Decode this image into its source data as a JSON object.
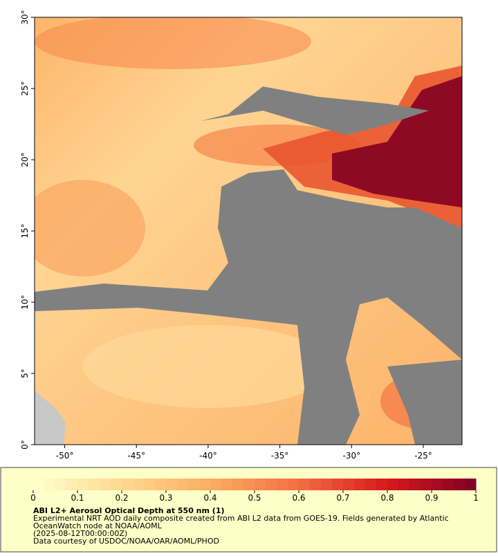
{
  "map": {
    "lonlim": [
      -52.1,
      -22.3
    ],
    "latlim": [
      0,
      30
    ],
    "lon_ticks": [
      {
        "value": -50,
        "label": "-50°"
      },
      {
        "value": -45,
        "label": "-45°"
      },
      {
        "value": -40,
        "label": "-40°"
      },
      {
        "value": -35,
        "label": "-35°"
      },
      {
        "value": -30,
        "label": "-30°"
      },
      {
        "value": -25,
        "label": "-25°"
      }
    ],
    "lat_ticks": [
      {
        "value": 0,
        "label": "0°"
      },
      {
        "value": 5,
        "label": "5°"
      },
      {
        "value": 10,
        "label": "10°"
      },
      {
        "value": 15,
        "label": "15°"
      },
      {
        "value": 20,
        "label": "20°"
      },
      {
        "value": 25,
        "label": "25°"
      },
      {
        "value": 30,
        "label": "30°"
      }
    ]
  },
  "colorbar": {
    "lim": [
      0,
      1
    ],
    "ticks": [
      0,
      0.1,
      0.2,
      0.3,
      0.4,
      0.5,
      0.6,
      0.7,
      0.8,
      0.9,
      1
    ]
  },
  "caption": {
    "title": "ABI L2+ Aerosol Optical Depth at 550 nm (1)",
    "lines": [
      "Experimental NRT AOD daily composite created from ABI L2 data from GOES-19. Fields generated by Atlantic",
      "OceanWatch node at NOAA/AOML",
      "(2025-08-12T00:00:00Z)",
      "Data courtesy of USDOC/NOAA/OAR/AOML/PHOD"
    ]
  }
}
